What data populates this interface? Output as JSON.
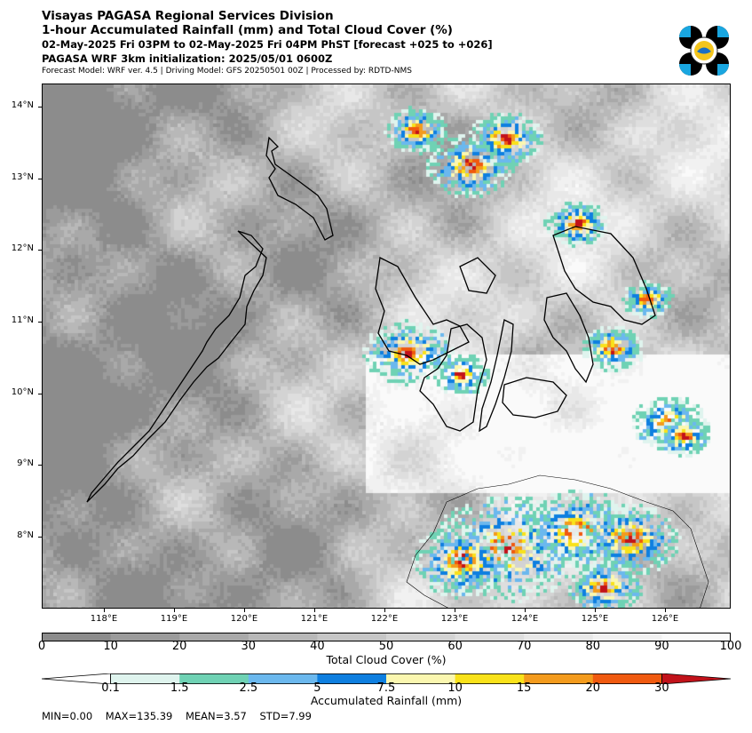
{
  "header": {
    "title": "Visayas PAGASA Regional Services Division",
    "subtitle": "1-hour Accumulated Rainfall (mm) and Total Cloud Cover (%)",
    "period": "02-May-2025 Fri 03PM to 02-May-2025 Fri 04PM PhST [forecast +025 to +026]",
    "init": "PAGASA WRF 3km initialization: 2025/05/01 0600Z",
    "model_info": "Forecast Model: WRF ver. 4.5 | Driving Model: GFS 20250501 00Z | Processed by: RDTD-NMS"
  },
  "map": {
    "lat_labels": [
      "14°N",
      "13°N",
      "12°N",
      "11°N",
      "10°N",
      "9°N",
      "8°N"
    ],
    "lon_labels": [
      "118°E",
      "119°E",
      "120°E",
      "121°E",
      "122°E",
      "123°E",
      "124°E",
      "125°E",
      "126°E"
    ]
  },
  "cloud_legend": {
    "label": "Total Cloud Cover (%)",
    "ticks": [
      "0",
      "10",
      "20",
      "30",
      "40",
      "50",
      "60",
      "70",
      "80",
      "90",
      "100"
    ],
    "colors": [
      "#8c8c8c",
      "#9b9b9b",
      "#a9a9a9",
      "#b8b8b8",
      "#c6c6c6",
      "#d3d3d3",
      "#dedede",
      "#e8e8e8",
      "#f1f1f1",
      "#fafafa"
    ]
  },
  "rain_legend": {
    "label": "Accumulated Rainfall (mm)",
    "ticks": [
      "0.1",
      "1.5",
      "2.5",
      "5",
      "7.5",
      "10",
      "15",
      "20",
      "30"
    ],
    "colors": [
      "#ffffff",
      "#dff4ee",
      "#6fd2b4",
      "#6bb8ee",
      "#0e7fe0",
      "#fbf7b0",
      "#f9e21a",
      "#f39b1d",
      "#f05a0f",
      "#c2121a"
    ]
  },
  "stats": {
    "min": "MIN=0.00",
    "max": "MAX=135.39",
    "mean": "MEAN=3.57",
    "std": "STD=7.99"
  }
}
